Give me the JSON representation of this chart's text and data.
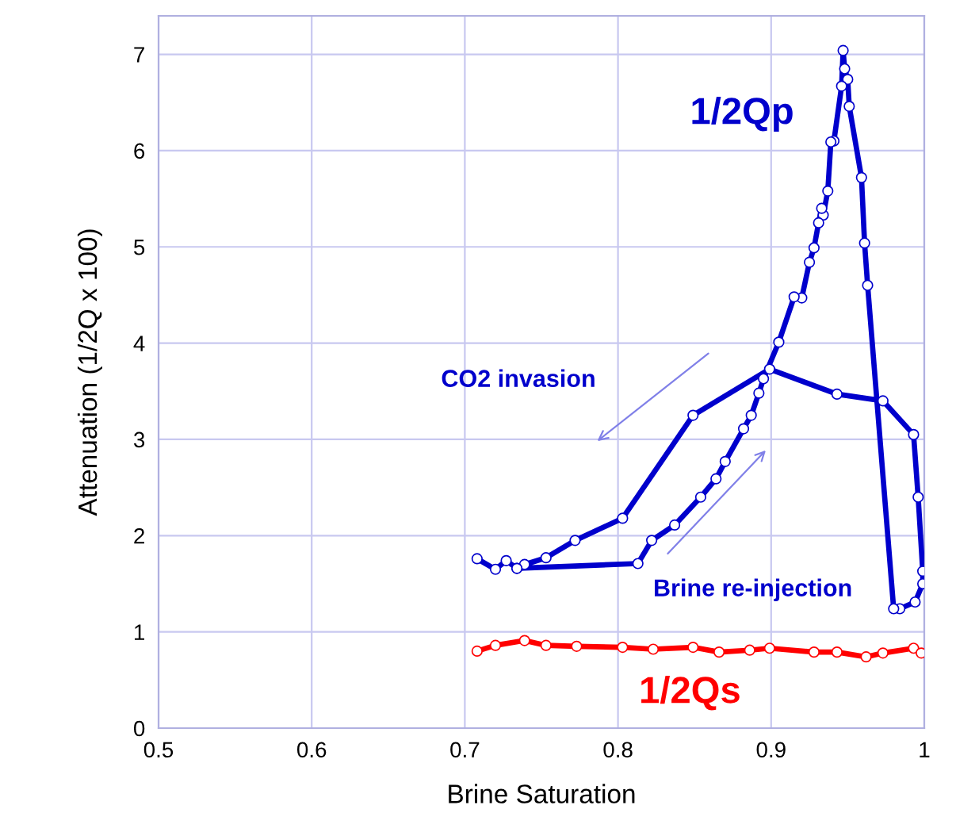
{
  "chart_data": {
    "type": "line",
    "xlabel": "Brine Saturation",
    "ylabel": "Attenuation (1/2Q x 100)",
    "xlim": [
      0.5,
      1.0
    ],
    "xticks": [
      0.5,
      0.6,
      0.7,
      0.8,
      0.9,
      1
    ],
    "ylim": [
      0,
      7.4
    ],
    "yticks": [
      0,
      1,
      2,
      3,
      4,
      5,
      6,
      7
    ],
    "grid": true,
    "marker": "circle",
    "line_style": "solid",
    "series": [
      {
        "color": "#0000cc",
        "x": [
          0.708,
          0.72,
          0.727,
          0.734,
          0.739,
          0.753,
          0.772,
          0.803,
          0.849,
          0.899,
          0.943,
          0.973,
          0.993,
          0.996,
          0.999,
          0.999,
          0.994,
          0.984,
          0.98,
          0.963,
          0.961,
          0.959,
          0.951,
          0.95,
          0.948,
          0.947,
          0.946,
          0.941,
          0.939,
          0.937,
          0.934,
          0.933,
          0.931,
          0.928,
          0.925,
          0.92,
          0.915,
          0.905,
          0.895,
          0.892,
          0.887,
          0.882,
          0.87,
          0.864,
          0.854,
          0.837,
          0.822,
          0.813,
          0.734
        ],
        "values": [
          1.76,
          1.65,
          1.74,
          1.66,
          1.7,
          1.77,
          1.95,
          2.18,
          3.25,
          3.73,
          3.47,
          3.4,
          3.05,
          2.4,
          1.63,
          1.5,
          1.31,
          1.24,
          1.24,
          4.6,
          5.04,
          5.72,
          6.46,
          6.74,
          6.85,
          7.04,
          6.67,
          6.1,
          6.09,
          5.58,
          5.33,
          5.4,
          5.25,
          4.99,
          4.84,
          4.47,
          4.48,
          4.01,
          3.63,
          3.48,
          3.25,
          3.11,
          2.77,
          2.59,
          2.4,
          2.11,
          1.95,
          1.71,
          1.66
        ]
      },
      {
        "color": "#ff0000",
        "x": [
          0.708,
          0.72,
          0.739,
          0.753,
          0.773,
          0.803,
          0.823,
          0.849,
          0.866,
          0.886,
          0.899,
          0.928,
          0.943,
          0.962,
          0.973,
          0.993,
          0.998
        ],
        "values": [
          0.8,
          0.86,
          0.91,
          0.86,
          0.85,
          0.84,
          0.82,
          0.84,
          0.79,
          0.81,
          0.83,
          0.79,
          0.79,
          0.74,
          0.78,
          0.83,
          0.78
        ]
      }
    ],
    "annotations": [
      "1/2Qp",
      "1/2Qs",
      "CO2 invasion",
      "Brine re-injection"
    ]
  }
}
